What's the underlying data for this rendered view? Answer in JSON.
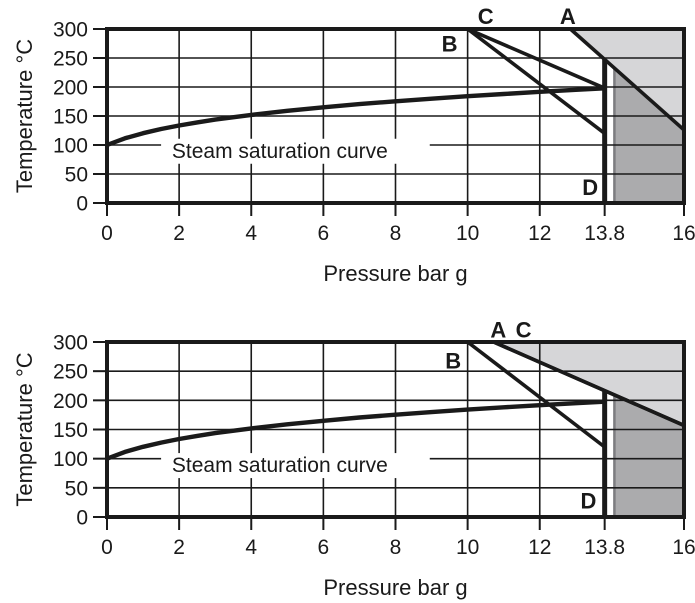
{
  "colors": {
    "ink": "#1a1a1a",
    "region_light": "#d6d6d8",
    "region_dark": "#ababad",
    "region_edge": "#7d7d80",
    "background": "#ffffff"
  },
  "chart_data": [
    {
      "name": "steam-pressure-chart-top",
      "type": "line",
      "xlabel": "Pressure bar g",
      "ylabel": "Temperature  °C",
      "xlim": [
        0,
        16
      ],
      "ylim": [
        0,
        300
      ],
      "grid": "on",
      "x_ticks": [
        0,
        2,
        4,
        6,
        8,
        10,
        12,
        13.8,
        16
      ],
      "x_tick_labels": [
        "0",
        "2",
        "4",
        "6",
        "8",
        "10",
        "12",
        "13.8",
        "16"
      ],
      "y_ticks": [
        0,
        50,
        100,
        150,
        200,
        250,
        300
      ],
      "y_tick_labels": [
        "0",
        "50",
        "100",
        "150",
        "200",
        "250",
        "300"
      ],
      "x_gridlines": [
        2,
        4,
        6,
        8,
        10,
        12
      ],
      "y_gridlines": [
        50,
        100,
        150,
        200,
        250
      ],
      "annotation": {
        "text": "Steam saturation curve",
        "x": 1.8,
        "y": 78
      },
      "saturation_curve": [
        [
          0,
          100
        ],
        [
          0.5,
          111.6
        ],
        [
          1,
          120.4
        ],
        [
          1.5,
          127.6
        ],
        [
          2,
          133.7
        ],
        [
          2.5,
          139
        ],
        [
          3,
          143.8
        ],
        [
          4,
          151.9
        ],
        [
          5,
          158.9
        ],
        [
          6,
          165
        ],
        [
          7,
          170.5
        ],
        [
          8,
          175.4
        ],
        [
          9,
          179.9
        ],
        [
          10,
          184.1
        ],
        [
          11,
          188
        ],
        [
          12,
          191.7
        ],
        [
          13,
          195.1
        ],
        [
          13.8,
          197.7
        ]
      ],
      "process_lines": [
        {
          "label": "A",
          "from": [
            12.85,
            300
          ],
          "to": [
            16,
            126
          ],
          "label_at": [
            12.78,
            309
          ]
        },
        {
          "label": "B",
          "from": [
            10,
            300
          ],
          "to": [
            13.8,
            120
          ],
          "label_at": [
            9.5,
            261
          ]
        },
        {
          "label": "C",
          "from": [
            10,
            300
          ],
          "to": [
            13.8,
            198
          ],
          "label_at": [
            10.5,
            309
          ]
        },
        {
          "label": "D",
          "from": [
            13.8,
            0
          ],
          "to": [
            13.8,
            248
          ],
          "label_at": [
            13.4,
            14
          ]
        }
      ],
      "regions": [
        {
          "name": "above-line-A",
          "shade": "light",
          "points": [
            [
              12.85,
              300
            ],
            [
              16,
              126
            ],
            [
              16,
              300
            ]
          ]
        },
        {
          "name": "beyond-boiler-pressure",
          "shade": "dark",
          "points": [
            [
              14.07,
              0
            ],
            [
              14.07,
              233
            ],
            [
              16,
              126
            ],
            [
              16,
              0
            ]
          ],
          "edge": {
            "x": 14.07,
            "y1": 0,
            "y2": 233
          }
        }
      ]
    },
    {
      "name": "steam-pressure-chart-bottom",
      "type": "line",
      "xlabel": "Pressure bar g",
      "ylabel": "Temperature  °C",
      "xlim": [
        0,
        16
      ],
      "ylim": [
        0,
        300
      ],
      "grid": "on",
      "x_ticks": [
        0,
        2,
        4,
        6,
        8,
        10,
        12,
        13.8,
        16
      ],
      "x_tick_labels": [
        "0",
        "2",
        "4",
        "6",
        "8",
        "10",
        "12",
        "13.8",
        "16"
      ],
      "y_ticks": [
        0,
        50,
        100,
        150,
        200,
        250,
        300
      ],
      "y_tick_labels": [
        "0",
        "50",
        "100",
        "150",
        "200",
        "250",
        "300"
      ],
      "x_gridlines": [
        2,
        4,
        6,
        8,
        10,
        12
      ],
      "y_gridlines": [
        50,
        100,
        150,
        200,
        250
      ],
      "annotation": {
        "text": "Steam saturation curve",
        "x": 1.8,
        "y": 77
      },
      "saturation_curve": [
        [
          0,
          100
        ],
        [
          0.5,
          111.6
        ],
        [
          1,
          120.4
        ],
        [
          1.5,
          127.6
        ],
        [
          2,
          133.7
        ],
        [
          2.5,
          139
        ],
        [
          3,
          143.8
        ],
        [
          4,
          151.9
        ],
        [
          5,
          158.9
        ],
        [
          6,
          165
        ],
        [
          7,
          170.5
        ],
        [
          8,
          175.4
        ],
        [
          9,
          179.9
        ],
        [
          10,
          184.1
        ],
        [
          11,
          188
        ],
        [
          12,
          191.7
        ],
        [
          13,
          195.1
        ],
        [
          13.8,
          197.7
        ]
      ],
      "process_lines": [
        {
          "label": "A",
          "from": [
            10.72,
            300
          ],
          "to": [
            16,
            157
          ],
          "label_at": [
            10.85,
            308
          ]
        },
        {
          "label": "C",
          "from": [
            10.72,
            300
          ],
          "to": [
            16,
            157
          ],
          "label_at": [
            11.55,
            308
          ]
        },
        {
          "label": "B",
          "from": [
            10,
            300
          ],
          "to": [
            13.8,
            120
          ],
          "label_at": [
            9.6,
            255
          ]
        },
        {
          "label": "D",
          "from": [
            13.8,
            0
          ],
          "to": [
            13.8,
            216
          ],
          "label_at": [
            13.35,
            15
          ]
        }
      ],
      "regions": [
        {
          "name": "above-line-AC",
          "shade": "light",
          "points": [
            [
              10.72,
              300
            ],
            [
              16,
              157
            ],
            [
              16,
              300
            ]
          ]
        },
        {
          "name": "beyond-boiler-pressure",
          "shade": "dark",
          "points": [
            [
              14.07,
              0
            ],
            [
              14.07,
              208
            ],
            [
              16,
              157
            ],
            [
              16,
              0
            ]
          ],
          "edge": {
            "x": 14.07,
            "y1": 0,
            "y2": 208
          }
        }
      ]
    }
  ]
}
